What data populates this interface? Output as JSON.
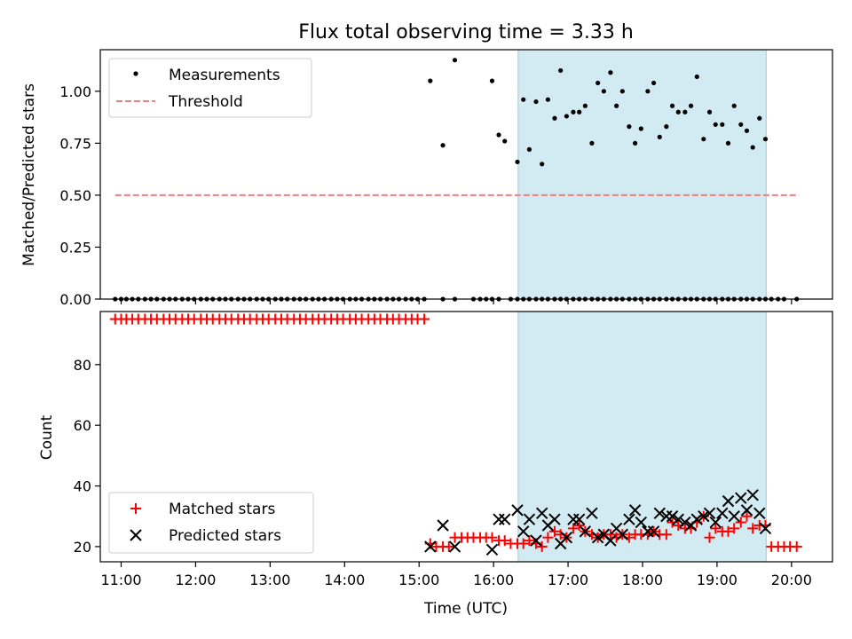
{
  "figure": {
    "title": "Flux total observing time = 3.33 h",
    "shade_color": "#add8e6"
  },
  "chart_data": [
    {
      "type": "scatter",
      "ylabel": "Matched/Predicted stars",
      "ylim": [
        0,
        1.2
      ],
      "yticks": [
        0.0,
        0.25,
        0.5,
        0.75,
        1.0
      ],
      "ytick_labels": [
        "0.00",
        "0.25",
        "0.50",
        "0.75",
        "1.00"
      ],
      "xlim_hours": [
        10.72,
        20.55
      ],
      "shaded_span_hours": [
        16.33,
        19.66
      ],
      "legend": {
        "placement": "top-left",
        "entries": [
          "Measurements",
          "Threshold"
        ]
      },
      "series": [
        {
          "name": "Measurements",
          "color": "#000000",
          "marker": "dot",
          "x": [
            10.92,
            11.0,
            11.07,
            11.15,
            11.23,
            11.32,
            11.4,
            11.48,
            11.57,
            11.65,
            11.73,
            11.82,
            11.9,
            11.98,
            12.07,
            12.15,
            12.23,
            12.32,
            12.4,
            12.48,
            12.57,
            12.65,
            12.73,
            12.82,
            12.9,
            12.98,
            13.07,
            13.15,
            13.23,
            13.32,
            13.4,
            13.48,
            13.57,
            13.65,
            13.73,
            13.82,
            13.9,
            13.98,
            14.07,
            14.15,
            14.23,
            14.32,
            14.4,
            14.48,
            14.57,
            14.65,
            14.73,
            14.82,
            14.9,
            14.98,
            15.07,
            15.15,
            15.32,
            15.48,
            15.73,
            15.82,
            15.9,
            15.98,
            16.07,
            16.23,
            16.32,
            16.4,
            16.48,
            16.57,
            16.65,
            16.73,
            16.82,
            16.9,
            16.98,
            17.07,
            17.15,
            17.23,
            17.32,
            17.4,
            17.48,
            17.57,
            17.65,
            17.73,
            17.82,
            17.9,
            17.98,
            18.07,
            18.15,
            18.23,
            18.32,
            18.4,
            18.48,
            18.57,
            18.65,
            18.73,
            18.82,
            18.9,
            18.98,
            19.07,
            19.15,
            19.23,
            19.32,
            19.4,
            19.48,
            19.57,
            19.65,
            19.73,
            19.82,
            19.9,
            20.07
          ],
          "y": [
            0,
            0,
            0,
            0,
            0,
            0,
            0,
            0,
            0,
            0,
            0,
            0,
            0,
            0,
            0,
            0,
            0,
            0,
            0,
            0,
            0,
            0,
            0,
            0,
            0,
            0,
            0,
            0,
            0,
            0,
            0,
            0,
            0,
            0,
            0,
            0,
            0,
            0,
            0,
            0,
            0,
            0,
            0,
            0,
            0,
            0,
            0,
            0,
            0,
            0,
            0,
            1.05,
            0,
            0,
            0,
            0,
            0,
            0,
            0,
            0,
            0,
            0,
            0,
            0,
            0,
            0,
            0,
            0,
            0,
            0,
            0,
            0,
            0,
            0,
            0,
            0,
            0,
            0,
            0,
            0,
            0,
            0,
            0,
            0,
            0,
            0,
            0,
            0,
            0,
            0,
            0,
            0,
            0,
            0,
            0,
            0,
            0,
            0,
            0,
            0,
            0,
            0,
            0,
            0,
            0
          ],
          "x_extra": [
            15.32,
            15.48,
            15.98,
            16.07,
            16.15,
            16.32,
            16.4,
            16.48,
            16.57,
            16.65,
            16.73,
            16.82,
            16.9,
            16.98,
            17.07,
            17.15,
            17.23,
            17.32,
            17.4,
            17.48,
            17.57,
            17.65,
            17.73,
            17.82,
            17.9,
            17.98,
            18.07,
            18.15,
            18.23,
            18.32,
            18.4,
            18.48,
            18.57,
            18.65,
            18.73,
            18.82,
            18.9,
            18.98,
            19.07,
            19.15,
            19.23,
            19.32,
            19.4,
            19.48,
            19.57,
            19.65
          ],
          "y_extra": [
            0.74,
            1.15,
            1.05,
            0.79,
            0.76,
            0.66,
            0.96,
            0.72,
            0.95,
            0.65,
            0.96,
            0.87,
            1.1,
            0.88,
            0.9,
            0.9,
            0.93,
            0.75,
            1.04,
            1.0,
            1.09,
            0.93,
            1.0,
            0.83,
            0.75,
            0.82,
            1.0,
            1.04,
            0.78,
            0.83,
            0.93,
            0.9,
            0.9,
            0.93,
            1.07,
            0.77,
            0.9,
            0.84,
            0.84,
            0.75,
            0.93,
            0.84,
            0.81,
            0.73,
            0.87,
            0.77
          ]
        },
        {
          "name": "Threshold",
          "color": "#f08080",
          "style": "dashed",
          "x": [
            10.92,
            20.1
          ],
          "y": [
            0.5,
            0.5
          ]
        }
      ]
    },
    {
      "type": "scatter",
      "xlabel": "Time (UTC)",
      "ylabel": "Count",
      "ylim": [
        15,
        97.5
      ],
      "yticks": [
        20,
        40,
        60,
        80
      ],
      "ytick_labels": [
        "20",
        "40",
        "60",
        "80"
      ],
      "xlim_hours": [
        10.72,
        20.55
      ],
      "xticks_hours": [
        11,
        12,
        13,
        14,
        15,
        16,
        17,
        18,
        19,
        20
      ],
      "xtick_labels": [
        "11:00",
        "12:00",
        "13:00",
        "14:00",
        "15:00",
        "16:00",
        "17:00",
        "18:00",
        "19:00",
        "20:00"
      ],
      "shaded_span_hours": [
        16.33,
        19.66
      ],
      "legend": {
        "placement": "bottom-left",
        "entries": [
          "Matched stars",
          "Predicted stars"
        ]
      },
      "series": [
        {
          "name": "Matched stars",
          "color": "#ff0000",
          "marker": "plus",
          "x": [
            10.92,
            11.0,
            11.07,
            11.15,
            11.23,
            11.32,
            11.4,
            11.48,
            11.57,
            11.65,
            11.73,
            11.82,
            11.9,
            11.98,
            12.07,
            12.15,
            12.23,
            12.32,
            12.4,
            12.48,
            12.57,
            12.65,
            12.73,
            12.82,
            12.9,
            12.98,
            13.07,
            13.15,
            13.23,
            13.32,
            13.4,
            13.48,
            13.57,
            13.65,
            13.73,
            13.82,
            13.9,
            13.98,
            14.07,
            14.15,
            14.23,
            14.32,
            14.4,
            14.48,
            14.57,
            14.65,
            14.73,
            14.82,
            14.9,
            14.98,
            15.07,
            15.15,
            15.23,
            15.32,
            15.4,
            15.48,
            15.57,
            15.65,
            15.73,
            15.82,
            15.9,
            15.98,
            16.07,
            16.15,
            16.23,
            16.32,
            16.4,
            16.48,
            16.57,
            16.65,
            16.73,
            16.82,
            16.9,
            16.98,
            17.07,
            17.15,
            17.23,
            17.32,
            17.4,
            17.48,
            17.57,
            17.65,
            17.73,
            17.82,
            17.9,
            17.98,
            18.07,
            18.15,
            18.23,
            18.32,
            18.4,
            18.48,
            18.57,
            18.65,
            18.73,
            18.82,
            18.9,
            18.98,
            19.07,
            19.15,
            19.23,
            19.32,
            19.4,
            19.48,
            19.57,
            19.65,
            19.73,
            19.82,
            19.9,
            19.98,
            20.07
          ],
          "y": [
            95,
            95,
            95,
            95,
            95,
            95,
            95,
            95,
            95,
            95,
            95,
            95,
            95,
            95,
            95,
            95,
            95,
            95,
            95,
            95,
            95,
            95,
            95,
            95,
            95,
            95,
            95,
            95,
            95,
            95,
            95,
            95,
            95,
            95,
            95,
            95,
            95,
            95,
            95,
            95,
            95,
            95,
            95,
            95,
            95,
            95,
            95,
            95,
            95,
            95,
            95,
            21,
            20,
            20,
            20,
            23,
            23,
            23,
            23,
            23,
            23,
            23,
            22,
            22,
            21,
            21,
            21,
            22,
            21,
            20,
            23,
            25,
            24,
            23,
            26,
            27,
            25,
            24,
            23,
            24,
            24,
            23,
            24,
            23,
            24,
            24,
            24,
            25,
            24,
            24,
            28,
            27,
            26,
            26,
            28,
            30,
            23,
            26,
            25,
            25,
            26,
            28,
            30,
            26,
            27,
            27,
            20,
            20,
            20,
            20,
            20
          ]
        },
        {
          "name": "Predicted stars",
          "color": "#000000",
          "marker": "x",
          "x": [
            15.15,
            15.32,
            15.48,
            15.98,
            16.07,
            16.15,
            16.32,
            16.4,
            16.48,
            16.57,
            16.65,
            16.73,
            16.82,
            16.9,
            16.98,
            17.07,
            17.15,
            17.23,
            17.32,
            17.4,
            17.48,
            17.57,
            17.65,
            17.73,
            17.82,
            17.9,
            17.98,
            18.07,
            18.15,
            18.23,
            18.32,
            18.4,
            18.48,
            18.57,
            18.65,
            18.73,
            18.82,
            18.9,
            18.98,
            19.07,
            19.15,
            19.23,
            19.32,
            19.4,
            19.48,
            19.57,
            19.65
          ],
          "y": [
            20,
            27,
            20,
            19,
            29,
            29,
            32,
            25,
            29,
            22,
            31,
            27,
            29,
            21,
            23,
            29,
            29,
            25,
            31,
            23,
            24,
            22,
            26,
            24,
            29,
            32,
            28,
            25,
            25,
            31,
            30,
            30,
            29,
            28,
            27,
            29,
            30,
            31,
            28,
            31,
            35,
            30,
            36,
            32,
            37,
            31,
            26
          ]
        }
      ]
    }
  ]
}
